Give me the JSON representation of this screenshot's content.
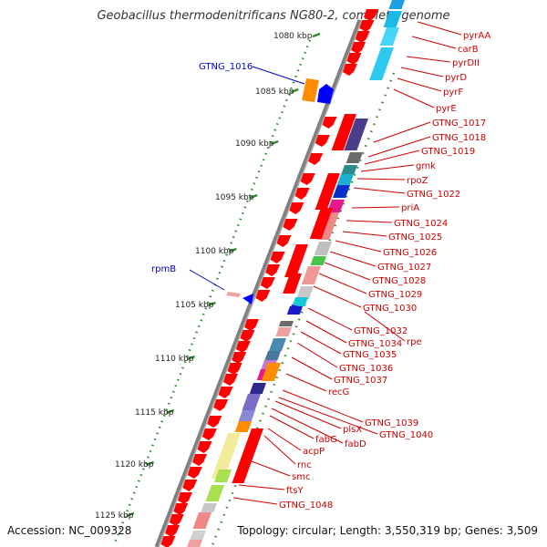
{
  "title": "Geobacillus thermodenitrificans NG80-2, complete genome",
  "footer": {
    "accession": "Accession: NC_009328",
    "topology": "Topology: circular; Length: 3,550,319 bp; Genes: 3,509"
  },
  "colors": {
    "forward_gene": "#ff0000",
    "reverse_gene": "#0000ff",
    "gene_label": "#cc0000",
    "highlight_label": "#0000cc",
    "tick": "#2e8b2e",
    "backbone": "#808080"
  },
  "scale_labels": [
    "1080 kbp",
    "1085 kbp",
    "1090 kbp",
    "1095 kbp",
    "1100 kbp",
    "1105 kbp",
    "1110 kbp",
    "1115 kbp",
    "1120 kbp",
    "1125 kbp"
  ],
  "left_labels": [
    "GTNG_1016",
    "rpmB"
  ],
  "gene_labels": [
    "pyrAA",
    "carB",
    "pyrDII",
    "pyrD",
    "pyrF",
    "pyrE",
    "GTNG_1017",
    "GTNG_1018",
    "GTNG_1019",
    "gmk",
    "rpoZ",
    "GTNG_1022",
    "priA",
    "GTNG_1024",
    "GTNG_1025",
    "GTNG_1026",
    "GTNG_1027",
    "GTNG_1028",
    "GTNG_1029",
    "GTNG_1030",
    "rpe",
    "GTNG_1032",
    "GTNG_1034",
    "GTNG_1035",
    "GTNG_1036",
    "GTNG_1037",
    "recG",
    "GTNG_1039",
    "GTNG_1040",
    "plsX",
    "fabD",
    "fabG",
    "acpP",
    "rnc",
    "smc",
    "ftsY",
    "GTNG_1048"
  ]
}
